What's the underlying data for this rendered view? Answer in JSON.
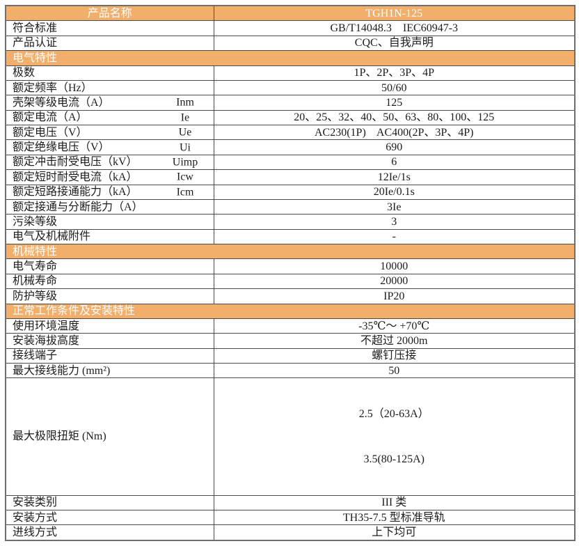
{
  "colors": {
    "accent_orange": "#f2ae6b",
    "header_text": "#ffffff",
    "body_text": "#1c1c1c",
    "border": "#4a4a4a"
  },
  "table": {
    "rows": [
      {
        "type": "header",
        "label": "产品名称",
        "value": "TGH1N-125"
      },
      {
        "type": "data",
        "label": "符合标准",
        "value": "GB/T14048.3    IEC60947-3"
      },
      {
        "type": "data",
        "label": "产品认证",
        "value": "CQC、自我声明"
      },
      {
        "type": "section",
        "label": "电气特性"
      },
      {
        "type": "data",
        "label": "极数",
        "value": "1P、2P、3P、4P"
      },
      {
        "type": "data",
        "label": "额定频率（Hz）",
        "value": "50/60"
      },
      {
        "type": "data",
        "label": "壳架等级电流（A）",
        "symbol": "Inm",
        "value": "125"
      },
      {
        "type": "data",
        "label": "额定电流（A）",
        "symbol": "Ie",
        "value": "20、25、32、40、50、63、80、100、125"
      },
      {
        "type": "data",
        "label": "额定电压（V）",
        "symbol": "Ue",
        "value": "AC230(1P)    AC400(2P、3P、4P)"
      },
      {
        "type": "data",
        "label": "额定绝缘电压（V）",
        "symbol": "Ui",
        "value": "690"
      },
      {
        "type": "data",
        "label": "额定冲击耐受电压（kV）",
        "symbol": "Uimp",
        "value": "6"
      },
      {
        "type": "data",
        "label": "额定短时耐受电流（kA）",
        "symbol": "Icw",
        "value": "12Ie/1s"
      },
      {
        "type": "data",
        "label": "额定短路接通能力（kA）",
        "symbol": "Icm",
        "value": "20Ie/0.1s"
      },
      {
        "type": "data",
        "label": "额定接通与分断能力（A）",
        "value": "3Ie"
      },
      {
        "type": "data",
        "label": "污染等级",
        "value": "3"
      },
      {
        "type": "data",
        "label": "电气及机械附件",
        "value": "-"
      },
      {
        "type": "section",
        "label": "机械特性"
      },
      {
        "type": "data",
        "label": "电气寿命",
        "value": "10000"
      },
      {
        "type": "data",
        "label": "机械寿命",
        "value": "20000"
      },
      {
        "type": "data",
        "label": "防护等级",
        "value": "IP20"
      },
      {
        "type": "section",
        "label": "正常工作条件及安装特性"
      },
      {
        "type": "data",
        "label": "使用环境温度",
        "value": "-35℃～ +70℃"
      },
      {
        "type": "data",
        "label": "安装海拔高度",
        "value": "不超过 2000m"
      },
      {
        "type": "data",
        "label": "接线端子",
        "value": "螺钉压接"
      },
      {
        "type": "data",
        "label": "最大接线能力 (mm²)",
        "value": "50"
      },
      {
        "type": "data2",
        "label": "最大极限扭矩 (Nm)",
        "values": [
          "2.5（20-63A）",
          "3.5(80-125A)"
        ]
      },
      {
        "type": "data",
        "label": "安装类别",
        "value": "III 类"
      },
      {
        "type": "data",
        "label": "安装方式",
        "value": "TH35-7.5 型标准导轨"
      },
      {
        "type": "data",
        "label": "进线方式",
        "value": "上下均可"
      }
    ]
  }
}
